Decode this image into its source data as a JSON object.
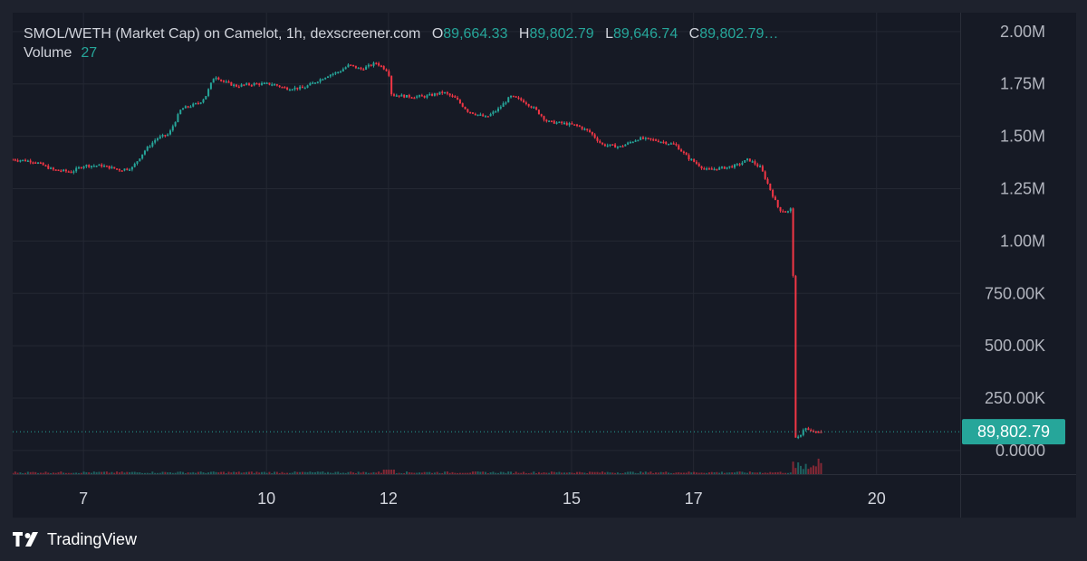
{
  "legend": {
    "title": "SMOL/WETH (Market Cap) on Camelot, 1h, dexscreener.com",
    "open_label": "O",
    "open": "89,664.33",
    "high_label": "H",
    "high": "89,802.79",
    "low_label": "L",
    "low": "89,646.74",
    "close_label": "C",
    "close": "89,802.79…",
    "volume_label": "Volume",
    "volume": "27"
  },
  "price_tag": "89,802.79",
  "brand": {
    "name": "TradingView",
    "icon": "tradingview-logo-icon"
  },
  "colors": {
    "up": "#26a69a",
    "down": "#f23645",
    "background": "#161a25",
    "tag": "#26a69a"
  },
  "chart_data": {
    "type": "candlestick",
    "title": "SMOL/WETH (Market Cap) on Camelot, 1h, dexscreener.com",
    "interval": "1h",
    "y_tick_labels": [
      "2.00M",
      "1.75M",
      "1.50M",
      "1.25M",
      "1.00M",
      "750.00K",
      "500.00K",
      "250.00K",
      "0.0000"
    ],
    "y_ticks": [
      2000000,
      1750000,
      1500000,
      1250000,
      1000000,
      750000,
      500000,
      250000,
      0
    ],
    "ylim": [
      -130000,
      2090000
    ],
    "x_tick_labels": [
      "7",
      "10",
      "12",
      "15",
      "17",
      "20"
    ],
    "x_ticks": [
      7,
      10,
      12,
      15,
      17,
      20
    ],
    "xlim": [
      5.84,
      21.37
    ],
    "last_price": 89802.79,
    "grid": true,
    "volume_label": "Volume",
    "last_volume": 27,
    "series_close": [
      [
        5.84,
        1390000
      ],
      [
        6.2,
        1380000
      ],
      [
        6.5,
        1340000
      ],
      [
        6.8,
        1330000
      ],
      [
        7.0,
        1360000
      ],
      [
        7.3,
        1360000
      ],
      [
        7.6,
        1340000
      ],
      [
        7.8,
        1350000
      ],
      [
        8.0,
        1430000
      ],
      [
        8.2,
        1490000
      ],
      [
        8.4,
        1510000
      ],
      [
        8.6,
        1630000
      ],
      [
        8.9,
        1660000
      ],
      [
        9.0,
        1690000
      ],
      [
        9.15,
        1790000
      ],
      [
        9.3,
        1760000
      ],
      [
        9.5,
        1740000
      ],
      [
        9.8,
        1750000
      ],
      [
        10.1,
        1750000
      ],
      [
        10.3,
        1730000
      ],
      [
        10.6,
        1730000
      ],
      [
        10.8,
        1760000
      ],
      [
        11.0,
        1790000
      ],
      [
        11.2,
        1810000
      ],
      [
        11.35,
        1840000
      ],
      [
        11.55,
        1820000
      ],
      [
        11.8,
        1850000
      ],
      [
        12.0,
        1810000
      ],
      [
        12.05,
        1700000
      ],
      [
        12.3,
        1690000
      ],
      [
        12.6,
        1690000
      ],
      [
        12.9,
        1710000
      ],
      [
        13.1,
        1680000
      ],
      [
        13.3,
        1620000
      ],
      [
        13.6,
        1590000
      ],
      [
        13.8,
        1630000
      ],
      [
        14.0,
        1690000
      ],
      [
        14.2,
        1670000
      ],
      [
        14.4,
        1630000
      ],
      [
        14.6,
        1570000
      ],
      [
        14.9,
        1560000
      ],
      [
        15.1,
        1550000
      ],
      [
        15.3,
        1520000
      ],
      [
        15.5,
        1460000
      ],
      [
        15.8,
        1450000
      ],
      [
        16.1,
        1490000
      ],
      [
        16.4,
        1480000
      ],
      [
        16.7,
        1460000
      ],
      [
        16.9,
        1400000
      ],
      [
        17.2,
        1340000
      ],
      [
        17.5,
        1350000
      ],
      [
        17.7,
        1360000
      ],
      [
        17.9,
        1390000
      ],
      [
        18.1,
        1350000
      ],
      [
        18.25,
        1250000
      ],
      [
        18.4,
        1150000
      ],
      [
        18.55,
        1140000
      ],
      [
        18.62,
        1160000
      ],
      [
        18.66,
        60000
      ],
      [
        18.75,
        70000
      ],
      [
        18.82,
        110000
      ],
      [
        18.9,
        95000
      ],
      [
        19.0,
        90000
      ],
      [
        19.13,
        89802.79
      ]
    ]
  }
}
